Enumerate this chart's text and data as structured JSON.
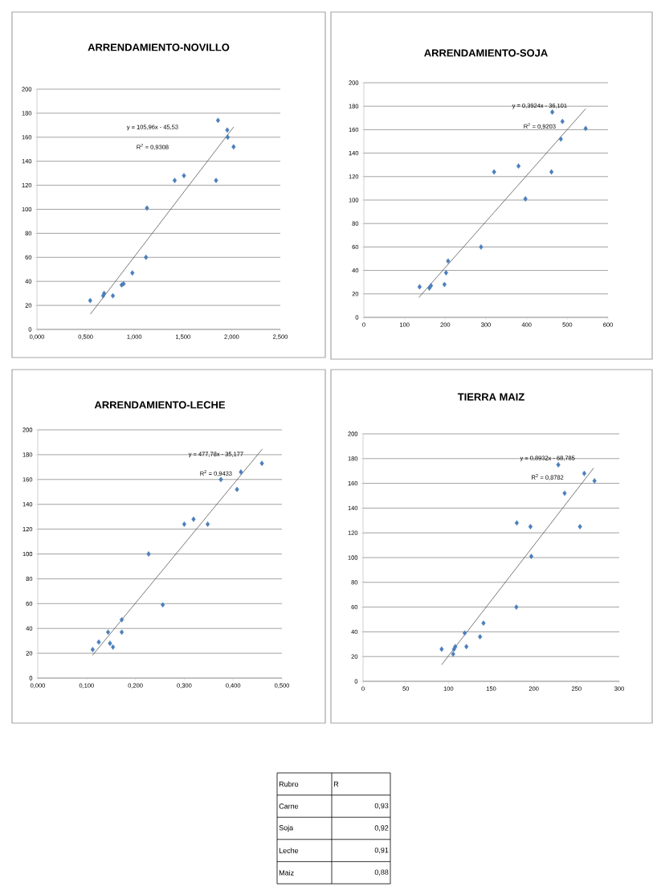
{
  "chart_data": [
    {
      "type": "scatter",
      "title": "ARRENDAMIENTO-NOVILLO",
      "grid": "y",
      "marker": "diamond",
      "xlim": [
        0,
        2.5
      ],
      "ylim": [
        0,
        200
      ],
      "xticks": [
        {
          "value": 0,
          "label": "0,000"
        },
        {
          "value": 0.5,
          "label": "0,500"
        },
        {
          "value": 1,
          "label": "1,000"
        },
        {
          "value": 1.5,
          "label": "1,500"
        },
        {
          "value": 2,
          "label": "2,000"
        },
        {
          "value": 2.5,
          "label": "2,500"
        }
      ],
      "yticks": [
        0,
        20,
        40,
        60,
        80,
        100,
        120,
        140,
        160,
        180,
        200
      ],
      "annotations": [
        "y = 105,96x - 45,53",
        "R$^{2}$ = 0,9308"
      ],
      "series": [
        {
          "color": "#4a7ebb",
          "x": [
            0.547,
            0.68,
            0.69,
            0.78,
            0.87,
            0.89,
            0.98,
            1.13,
            1.12,
            1.415,
            1.51,
            1.84,
            1.86,
            1.955,
            1.96,
            2.02
          ],
          "values": [
            24,
            28,
            30,
            28,
            37,
            38,
            47,
            101,
            60,
            124,
            128,
            124,
            174,
            166,
            160,
            152
          ]
        },
        {
          "type": "line",
          "marker": "none",
          "color": "#404040",
          "x": [
            0.55,
            2.02
          ],
          "values": [
            12.8,
            168.5
          ]
        }
      ]
    },
    {
      "type": "scatter",
      "title": "ARRENDAMIENTO-SOJA",
      "grid": "y",
      "marker": "diamond",
      "xlim": [
        0,
        600
      ],
      "ylim": [
        0,
        200
      ],
      "xticks": [
        0,
        100,
        200,
        300,
        400,
        500,
        600
      ],
      "yticks": [
        0,
        20,
        40,
        60,
        80,
        100,
        120,
        140,
        160,
        180,
        200
      ],
      "annotations": [
        "y = 0,3924x - 36,101",
        "R$^{2}$ = 0,9203"
      ],
      "series": [
        {
          "color": "#4a7ebb",
          "x": [
            137,
            161,
            165,
            198,
            202,
            207,
            288,
            320,
            380,
            397,
            461,
            463,
            488,
            484,
            545
          ],
          "values": [
            26,
            25,
            27,
            28,
            38,
            48,
            60,
            124,
            129,
            101,
            124,
            175,
            167,
            152,
            161
          ]
        },
        {
          "type": "line",
          "marker": "none",
          "color": "#404040",
          "x": [
            135,
            545
          ],
          "values": [
            16.9,
            177.8
          ]
        }
      ]
    },
    {
      "type": "scatter",
      "title": "ARRENDAMIENTO-LECHE",
      "grid": "y",
      "marker": "diamond",
      "xlim": [
        0,
        0.5
      ],
      "ylim": [
        0,
        200
      ],
      "xticks": [
        {
          "value": 0,
          "label": "0,000"
        },
        {
          "value": 0.1,
          "label": "0,100"
        },
        {
          "value": 0.2,
          "label": "0,200"
        },
        {
          "value": 0.3,
          "label": "0,300"
        },
        {
          "value": 0.4,
          "label": "0,400"
        },
        {
          "value": 0.5,
          "label": "0,500"
        }
      ],
      "yticks": [
        0,
        20,
        40,
        60,
        80,
        100,
        120,
        140,
        160,
        180,
        200
      ],
      "annotations": [
        "y = 477,78x - 35,177",
        "R$^{2}$ = 0,9433"
      ],
      "series": [
        {
          "color": "#4a7ebb",
          "x": [
            0.1125,
            0.125,
            0.144,
            0.148,
            0.154,
            0.172,
            0.172,
            0.227,
            0.256,
            0.3,
            0.319,
            0.348,
            0.375,
            0.408,
            0.416,
            0.459
          ],
          "values": [
            23,
            29,
            37,
            28,
            25,
            47,
            37,
            100,
            59,
            124,
            128,
            124,
            160,
            152,
            166,
            173
          ]
        },
        {
          "type": "line",
          "marker": "none",
          "color": "#404040",
          "x": [
            0.112,
            0.46
          ],
          "values": [
            18.3,
            184.6
          ]
        }
      ]
    },
    {
      "type": "scatter",
      "title": "TIERRA MAIZ",
      "grid": "y",
      "marker": "diamond",
      "xlim": [
        0,
        300
      ],
      "ylim": [
        0,
        200
      ],
      "xticks": [
        0,
        50,
        100,
        150,
        200,
        250,
        300
      ],
      "yticks": [
        0,
        20,
        40,
        60,
        80,
        100,
        120,
        140,
        160,
        180,
        200
      ],
      "annotations": [
        "y = 0,8932x - 68,785",
        "R$^{2}$ = 0,8782"
      ],
      "series": [
        {
          "color": "#4a7ebb",
          "x": [
            92,
            105.5,
            106.5,
            108,
            119,
            121,
            137,
            141,
            180,
            179.5,
            196,
            197,
            228.6,
            236,
            254,
            259,
            271
          ],
          "values": [
            26,
            22,
            26,
            28,
            39,
            28,
            36,
            47,
            128,
            60,
            125,
            101,
            175,
            152,
            125,
            168,
            162
          ]
        },
        {
          "type": "line",
          "marker": "none",
          "color": "#404040",
          "x": [
            92,
            270
          ],
          "values": [
            13.4,
            172.4
          ]
        }
      ]
    },
    {
      "type": "other",
      "xlabel": "Rubro",
      "ylabel": "R",
      "categories": [
        "Carne",
        "Soja",
        "Leche",
        "Maiz"
      ],
      "value_labels": [
        "0,93",
        "0,92",
        "0,91",
        "0,88"
      ]
    }
  ]
}
